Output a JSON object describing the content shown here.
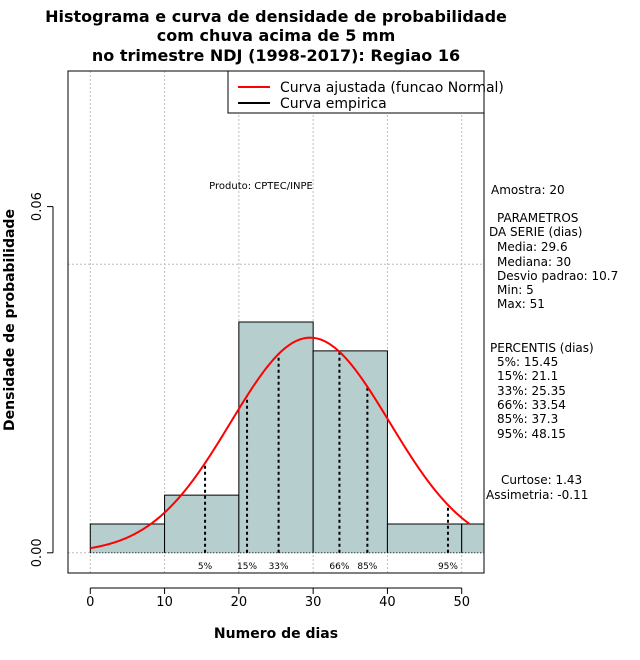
{
  "chart_data": {
    "type": "bar",
    "title_lines": [
      "Histograma e curva de densidade de probabilidade",
      "com chuva acima de 5 mm",
      "no trimestre NDJ (1998-2017): Regiao 16"
    ],
    "xlabel": "Numero de dias",
    "ylabel": "Densidade de probabilidade",
    "xlim": [
      -3,
      53
    ],
    "ylim": [
      -0.0035,
      0.0835
    ],
    "x_ticks": [
      0,
      10,
      20,
      30,
      40,
      50
    ],
    "y_ticks": [
      0.0,
      0.06
    ],
    "y_tick_labels": [
      "0.00",
      "0.06"
    ],
    "grid": true,
    "grid_x": [
      0,
      10,
      20,
      30,
      40,
      50
    ],
    "grid_y": [
      0.0,
      0.05
    ],
    "bars": [
      {
        "start": 0,
        "end": 10,
        "density": 0.005
      },
      {
        "start": 10,
        "end": 20,
        "density": 0.01
      },
      {
        "start": 20,
        "end": 30,
        "density": 0.04
      },
      {
        "start": 30,
        "end": 40,
        "density": 0.035
      },
      {
        "start": 40,
        "end": 50,
        "density": 0.005
      },
      {
        "start": 50,
        "end": 53,
        "density": 0.005
      }
    ],
    "normal_fit": {
      "mean": 29.6,
      "sd": 10.7,
      "x_from": 0,
      "x_to": 51,
      "color": "#ff0000"
    },
    "percentiles": [
      {
        "label": "5%",
        "value": 15.45
      },
      {
        "label": "15%",
        "value": 21.1
      },
      {
        "label": "33%",
        "value": 25.35
      },
      {
        "label": "66%",
        "value": 33.54
      },
      {
        "label": "85%",
        "value": 37.3
      },
      {
        "label": "95%",
        "value": 48.15
      }
    ],
    "bar_color": "#b7cece",
    "legend": {
      "position": "top-right",
      "entries": [
        {
          "label": "Curva ajustada (funcao Normal)",
          "color": "#ff0000"
        },
        {
          "label": "Curva empirica",
          "color": "#000000"
        }
      ]
    },
    "product_label": "Produto: CPTEC/INPE"
  },
  "side_panel": {
    "sample": "Amostra: 20",
    "params_title_1": "PARAMETROS",
    "params_title_2": "DA SERIE (dias)",
    "params": [
      "Media: 29.6",
      "Mediana: 30",
      "Desvio padrao: 10.7",
      "Min: 5",
      "Max: 51"
    ],
    "percentis_title": "PERCENTIS (dias)",
    "percentis": [
      "5%: 15.45",
      "15%: 21.1",
      "33%: 25.35",
      "66%: 33.54",
      "85%: 37.3",
      "95%: 48.15"
    ],
    "kurtosis": "Curtose: 1.43",
    "skewness": "Assimetria: -0.11"
  }
}
